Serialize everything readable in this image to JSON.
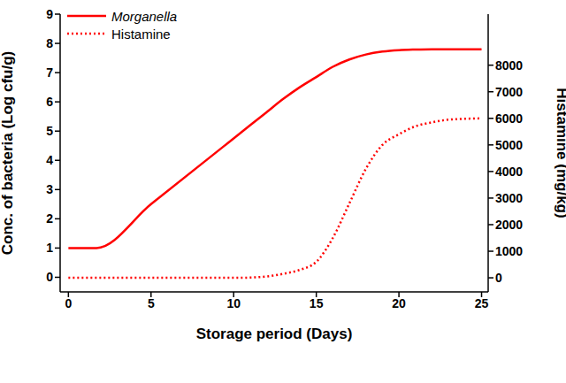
{
  "chart_data": {
    "type": "line",
    "x_label": "Storage period (Days)",
    "y_label": "Conc. of bacteria (Log cfu/g)",
    "y2_label": "Histamine (mg/kg)",
    "x": [
      0,
      1.7,
      5,
      10,
      11,
      12,
      13,
      14,
      15,
      16,
      17,
      18,
      19,
      20,
      21,
      22,
      23,
      25
    ],
    "series": [
      {
        "name": "Morganella",
        "color": "#ff0000",
        "line_style": "solid",
        "axis": "y",
        "values": [
          1,
          1,
          2.5,
          4.75,
          5.2,
          5.65,
          6.1,
          6.5,
          6.85,
          7.2,
          7.45,
          7.62,
          7.72,
          7.77,
          7.79,
          7.8,
          7.8,
          7.8
        ]
      },
      {
        "name": "Histamine",
        "color": "#ff0000",
        "line_style": "dotted",
        "axis": "y2",
        "values": [
          0,
          0,
          0,
          0,
          10,
          50,
          150,
          300,
          600,
          1500,
          2800,
          4100,
          5000,
          5400,
          5700,
          5850,
          5950,
          6000
        ]
      }
    ],
    "xlim": [
      -0.5,
      25.4
    ],
    "xticks": [
      0,
      5,
      10,
      15,
      20,
      25
    ],
    "ylim": [
      -0.5,
      9
    ],
    "yticks": [
      0,
      1,
      2,
      3,
      4,
      5,
      6,
      7,
      8,
      9
    ],
    "y2lim": [
      -530,
      9920
    ],
    "y2ticks": [
      0,
      1000,
      2000,
      3000,
      4000,
      5000,
      6000,
      7000,
      8000
    ],
    "grid": false,
    "legend": "upper left"
  }
}
